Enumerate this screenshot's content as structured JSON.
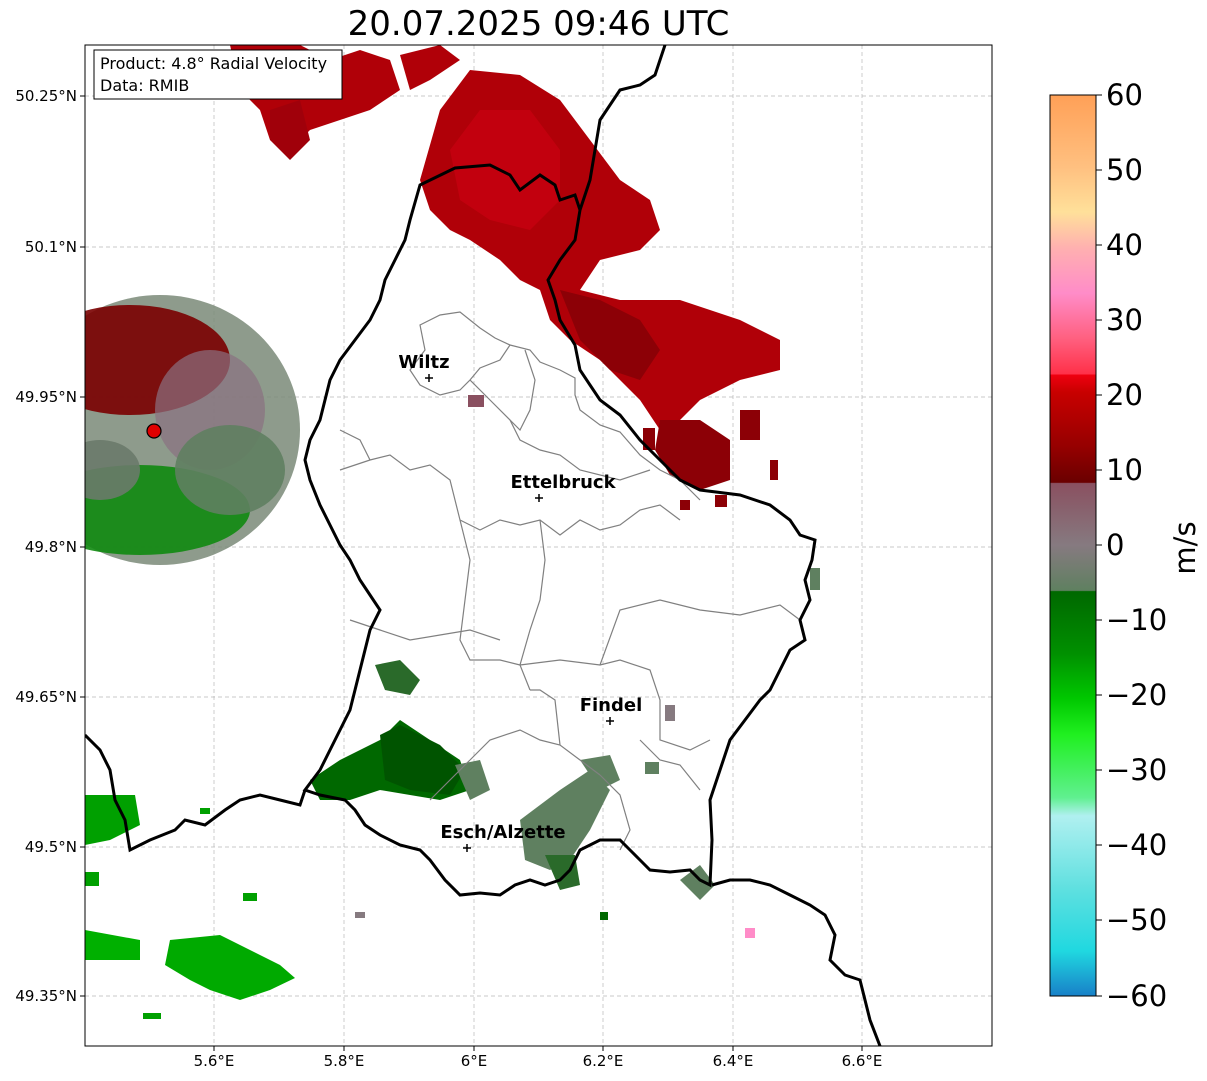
{
  "title": "20.07.2025 09:46 UTC",
  "info_box": {
    "product": "Product: 4.8° Radial Velocity",
    "data": "Data: RMIB"
  },
  "axes": {
    "lon_ticks": [
      "5.6°E",
      "5.8°E",
      "6°E",
      "6.2°E",
      "6.4°E",
      "6.6°E"
    ],
    "lat_ticks": [
      "50.25°N",
      "50.1°N",
      "49.95°N",
      "49.8°N",
      "49.65°N",
      "49.5°N",
      "49.35°N"
    ],
    "grid": true
  },
  "cities": [
    {
      "name": "Wiltz"
    },
    {
      "name": "Ettelbruck"
    },
    {
      "name": "Findel"
    },
    {
      "name": "Esch/Alzette"
    }
  ],
  "colorbar": {
    "label": "m/s",
    "ticks": [
      "60",
      "50",
      "40",
      "30",
      "20",
      "10",
      "0",
      "−10",
      "−20",
      "−30",
      "−40",
      "−50",
      "−60"
    ],
    "range": [
      -60,
      60
    ],
    "stops": [
      "#ffa057",
      "#ffc080",
      "#ffe09a",
      "#ffb0b0",
      "#ff8cc8",
      "#ff6080",
      "#ff3048",
      "#f00010",
      "#c80000",
      "#960000",
      "#6a0000",
      "#8a5060",
      "#867a80",
      "#5f8060",
      "#006800",
      "#009000",
      "#00c800",
      "#20f020",
      "#60f090",
      "#b0f0f0",
      "#60e0e0",
      "#20d8e0",
      "#1880c8"
    ],
    "colors": {
      "positive_max": "#ffa057",
      "zero": "#808080",
      "negative_min": "#1f77b4"
    }
  },
  "radar_site_color": "#e00000"
}
